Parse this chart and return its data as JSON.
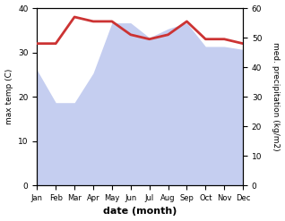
{
  "months": [
    "Jan",
    "Feb",
    "Mar",
    "Apr",
    "May",
    "Jun",
    "Jul",
    "Aug",
    "Sep",
    "Oct",
    "Nov",
    "Dec"
  ],
  "month_indices": [
    1,
    2,
    3,
    4,
    5,
    6,
    7,
    8,
    9,
    10,
    11,
    12
  ],
  "temperature": [
    32,
    32,
    38,
    37,
    37,
    34,
    33,
    34,
    37,
    33,
    33,
    32
  ],
  "precipitation": [
    39,
    28,
    28,
    38,
    55,
    55,
    50,
    53,
    55,
    47,
    47,
    46
  ],
  "temp_color": "#cc3333",
  "precip_fill_color": "#c5cef0",
  "temp_ylim": [
    0,
    40
  ],
  "precip_ylim": [
    0,
    60
  ],
  "temp_yticks": [
    0,
    10,
    20,
    30,
    40
  ],
  "precip_yticks": [
    0,
    10,
    20,
    30,
    40,
    50,
    60
  ],
  "xlabel": "date (month)",
  "ylabel_left": "max temp (C)",
  "ylabel_right": "med. precipitation (kg/m2)",
  "line_width": 2.0,
  "bg_color": "#ffffff"
}
